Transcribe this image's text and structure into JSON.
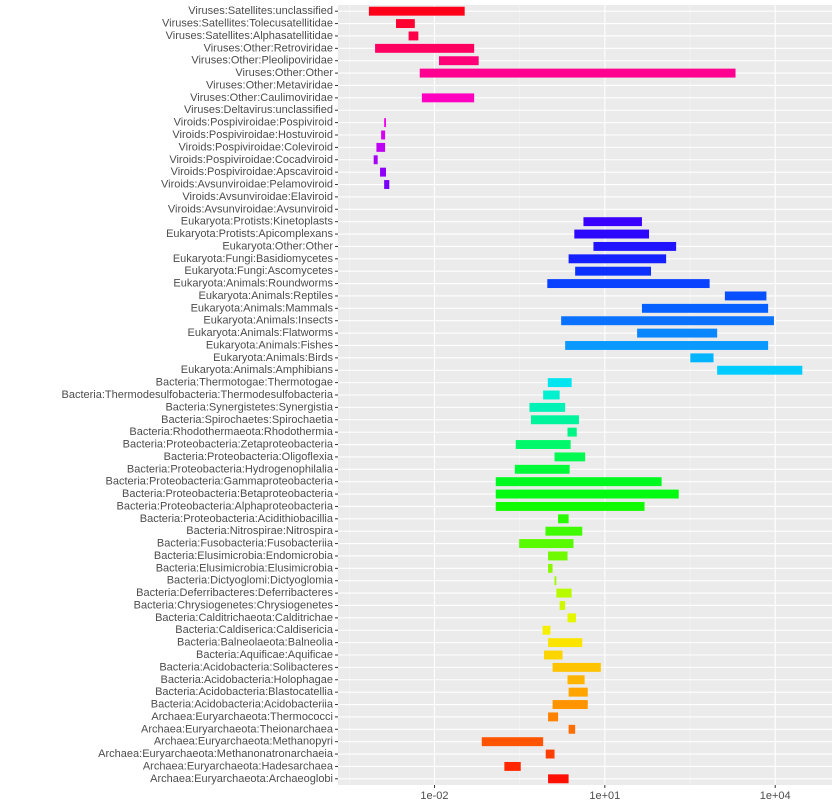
{
  "chart_data": {
    "type": "bar",
    "orientation": "horizontal-range",
    "xscale": "log10",
    "xlim": [
      0.0002,
      100000
    ],
    "xticks": [
      {
        "value": 0.01,
        "label": "1e-02"
      },
      {
        "value": 10,
        "label": "1e+01"
      },
      {
        "value": 10000,
        "label": "1e+04"
      }
    ],
    "grid": true,
    "legend": "none",
    "title": "",
    "xlabel": "",
    "ylabel": "",
    "categories": [
      "Viruses:Satellites:unclassified",
      "Viruses:Satellites:Tolecusatellitidae",
      "Viruses:Satellites:Alphasatellitidae",
      "Viruses:Other:Retroviridae",
      "Viruses:Other:Pleolipoviridae",
      "Viruses:Other:Other",
      "Viruses:Other:Metaviridae",
      "Viruses:Other:Caulimoviridae",
      "Viruses:Deltavirus:unclassified",
      "Viroids:Pospiviroidae:Pospiviroid",
      "Viroids:Pospiviroidae:Hostuviroid",
      "Viroids:Pospiviroidae:Coleviroid",
      "Viroids:Pospiviroidae:Cocadviroid",
      "Viroids:Pospiviroidae:Apscaviroid",
      "Viroids:Avsunviroidae:Pelamoviroid",
      "Viroids:Avsunviroidae:Elaviroid",
      "Viroids:Avsunviroidae:Avsunviroid",
      "Eukaryota:Protists:Kinetoplasts",
      "Eukaryota:Protists:Apicomplexans",
      "Eukaryota:Other:Other",
      "Eukaryota:Fungi:Basidiomycetes",
      "Eukaryota:Fungi:Ascomycetes",
      "Eukaryota:Animals:Roundworms",
      "Eukaryota:Animals:Reptiles",
      "Eukaryota:Animals:Mammals",
      "Eukaryota:Animals:Insects",
      "Eukaryota:Animals:Flatworms",
      "Eukaryota:Animals:Fishes",
      "Eukaryota:Animals:Birds",
      "Eukaryota:Animals:Amphibians",
      "Bacteria:Thermotogae:Thermotogae",
      "Bacteria:Thermodesulfobacteria:Thermodesulfobacteria",
      "Bacteria:Synergistetes:Synergistia",
      "Bacteria:Spirochaetes:Spirochaetia",
      "Bacteria:Rhodothermaeota:Rhodothermia",
      "Bacteria:Proteobacteria:Zetaproteobacteria",
      "Bacteria:Proteobacteria:Oligoflexia",
      "Bacteria:Proteobacteria:Hydrogenophilalia",
      "Bacteria:Proteobacteria:Gammaproteobacteria",
      "Bacteria:Proteobacteria:Betaproteobacteria",
      "Bacteria:Proteobacteria:Alphaproteobacteria",
      "Bacteria:Proteobacteria:Acidithiobacillia",
      "Bacteria:Nitrospirae:Nitrospira",
      "Bacteria:Fusobacteria:Fusobacteriia",
      "Bacteria:Elusimicrobia:Endomicrobia",
      "Bacteria:Elusimicrobia:Elusimicrobia",
      "Bacteria:Dictyoglomi:Dictyoglomia",
      "Bacteria:Deferribacteres:Deferribacteres",
      "Bacteria:Chrysiogenetes:Chrysiogenetes",
      "Bacteria:Calditrichaeota:Calditrichae",
      "Bacteria:Caldiserica:Caldisericia",
      "Bacteria:Balneolaeota:Balneolia",
      "Bacteria:Aquificae:Aquificae",
      "Bacteria:Acidobacteria:Solibacteres",
      "Bacteria:Acidobacteria:Holophagae",
      "Bacteria:Acidobacteria:Blastocatellia",
      "Bacteria:Acidobacteria:Acidobacteriia",
      "Archaea:Euryarchaeota:Thermococci",
      "Archaea:Euryarchaeota:Theionarchaea",
      "Archaea:Euryarchaeota:Methanopyri",
      "Archaea:Euryarchaeota:Methanonatronarchaeia",
      "Archaea:Euryarchaeota:Hadesarchaea",
      "Archaea:Euryarchaeota:Archaeoglobi"
    ],
    "ranges": [
      [
        0.0007,
        0.034
      ],
      [
        0.0021,
        0.0045
      ],
      [
        0.0035,
        0.0052
      ],
      [
        0.0009,
        0.05
      ],
      [
        0.012,
        0.06
      ],
      [
        0.0055,
        2000
      ],
      null,
      [
        0.006,
        0.05
      ],
      null,
      [
        0.0013,
        0.0014
      ],
      [
        0.00115,
        0.00135
      ],
      [
        0.00095,
        0.00135
      ],
      [
        0.00085,
        0.001
      ],
      [
        0.0011,
        0.0014
      ],
      [
        0.0013,
        0.0016
      ],
      null,
      null,
      [
        4.2,
        45
      ],
      [
        2.9,
        60
      ],
      [
        6.3,
        180
      ],
      [
        2.3,
        120
      ],
      [
        3.0,
        65
      ],
      [
        0.97,
        700
      ],
      [
        1300,
        7000
      ],
      [
        45,
        7500
      ],
      [
        1.7,
        9500
      ],
      [
        37,
        950
      ],
      [
        2.0,
        7500
      ],
      [
        320,
        820
      ],
      [
        950,
        30000
      ],
      [
        0.99,
        2.6
      ],
      [
        0.82,
        1.6
      ],
      [
        0.47,
        2.0
      ],
      [
        0.5,
        3.5
      ],
      [
        2.2,
        3.2
      ],
      [
        0.27,
        2.5
      ],
      [
        1.3,
        4.5
      ],
      [
        0.26,
        2.4
      ],
      [
        0.12,
        100
      ],
      [
        0.12,
        200
      ],
      [
        0.12,
        50
      ],
      [
        1.5,
        2.3
      ],
      [
        0.9,
        4.0
      ],
      [
        0.31,
        2.8
      ],
      [
        1.0,
        2.2
      ],
      [
        1.0,
        1.2
      ],
      [
        1.3,
        1.4
      ],
      [
        1.4,
        2.6
      ],
      [
        1.6,
        2.0
      ],
      [
        2.2,
        3.1
      ],
      [
        0.8,
        1.1
      ],
      [
        1.0,
        4.0
      ],
      [
        0.85,
        1.8
      ],
      [
        1.2,
        8.5
      ],
      [
        2.2,
        4.4
      ],
      [
        2.3,
        5.0
      ],
      [
        1.2,
        5.0
      ],
      [
        1.0,
        1.5
      ],
      [
        2.3,
        3.0
      ],
      [
        0.068,
        0.82
      ],
      [
        0.91,
        1.3
      ],
      [
        0.17,
        0.33
      ],
      [
        1.0,
        2.3
      ]
    ],
    "colors": [
      "#ff0018",
      "#ff0030",
      "#ff0048",
      "#ff0060",
      "#ff0078",
      "#ff0090",
      "#ff00a8",
      "#ff00c0",
      "#ff00d8",
      "#f000f0",
      "#d800f2",
      "#c000f4",
      "#a800f6",
      "#9000f8",
      "#7800fa",
      "#6000fc",
      "#4800fe",
      "#3a00ff",
      "#2c08ff",
      "#2014ff",
      "#1420ff",
      "#0c30ff",
      "#0a40ff",
      "#0850ff",
      "#0660ff",
      "#0a72ff",
      "#0a86ff",
      "#0a9aff",
      "#00b4ff",
      "#00ccff",
      "#00e6f0",
      "#00f0d0",
      "#00f2b6",
      "#00f49c",
      "#00f684",
      "#00f86a",
      "#00fa52",
      "#00fa38",
      "#00fa20",
      "#00fa10",
      "#10fa00",
      "#28fa00",
      "#40fa00",
      "#58fa00",
      "#70fa00",
      "#88fa00",
      "#a0fa00",
      "#b8fa00",
      "#cff800",
      "#e4f600",
      "#f6f000",
      "#fae400",
      "#fcd400",
      "#ffc400",
      "#ffb400",
      "#ffa400",
      "#ff9400",
      "#ff8200",
      "#ff6e00",
      "#ff5400",
      "#ff3e00",
      "#ff2600",
      "#ff1000"
    ]
  }
}
